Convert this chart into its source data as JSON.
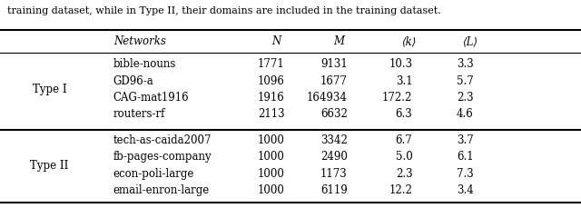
{
  "caption": "training dataset, while in Type II, their domains are included in the training dataset.",
  "headers": [
    "Networks",
    "N",
    "M",
    "⟨k⟩",
    "⟨L⟩"
  ],
  "rows": [
    [
      "bible-nouns",
      "1771",
      "9131",
      "10.3",
      "3.3"
    ],
    [
      "GD96-a",
      "1096",
      "1677",
      "3.1",
      "5.7"
    ],
    [
      "CAG-mat1916",
      "1916",
      "164934",
      "172.2",
      "2.3"
    ],
    [
      "routers-rf",
      "2113",
      "6632",
      "6.3",
      "4.6"
    ],
    [
      "tech-as-caida2007",
      "1000",
      "3342",
      "6.7",
      "3.7"
    ],
    [
      "fb-pages-company",
      "1000",
      "2490",
      "5.0",
      "6.1"
    ],
    [
      "econ-poli-large",
      "1000",
      "1173",
      "2.3",
      "7.3"
    ],
    [
      "email-enron-large",
      "1000",
      "6119",
      "12.2",
      "3.4"
    ]
  ],
  "type_labels": [
    "Type I",
    "Type II"
  ],
  "figsize": [
    6.4,
    2.29
  ],
  "dpi": 100,
  "font_size": 8.5,
  "caption_font_size": 8.0
}
